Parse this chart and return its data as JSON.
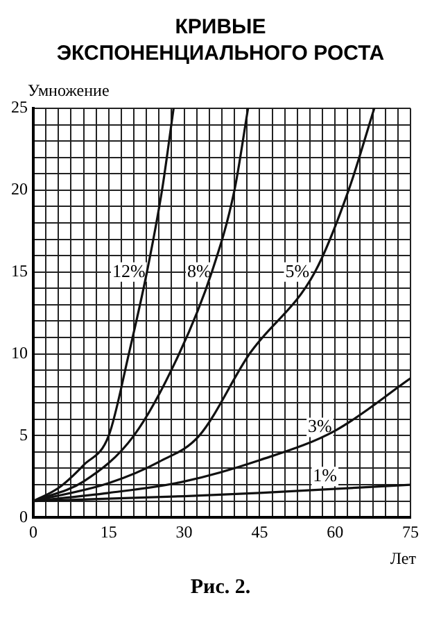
{
  "chart_data": {
    "type": "line",
    "title": "КРИВЫЕ\nЭКСПОНЕНЦИАЛЬНОГО РОСТА",
    "xlabel": "Лет",
    "ylabel": "Умножение",
    "xlim": [
      0,
      75
    ],
    "ylim": [
      0,
      25
    ],
    "grid": true,
    "xticks": [
      0,
      {
        "value": 2.5,
        "label": null
      },
      {
        "value": 5,
        "label": null
      },
      {
        "value": 7.5,
        "label": null
      },
      {
        "value": 10,
        "label": null
      },
      {
        "value": 12.5,
        "label": null
      },
      15,
      {
        "value": 17.5,
        "label": null
      },
      {
        "value": 20,
        "label": null
      },
      {
        "value": 22.5,
        "label": null
      },
      {
        "value": 25,
        "label": null
      },
      {
        "value": 27.5,
        "label": null
      },
      30,
      {
        "value": 32.5,
        "label": null
      },
      {
        "value": 35,
        "label": null
      },
      {
        "value": 37.5,
        "label": null
      },
      {
        "value": 40,
        "label": null
      },
      {
        "value": 42.5,
        "label": null
      },
      45,
      {
        "value": 47.5,
        "label": null
      },
      {
        "value": 50,
        "label": null
      },
      {
        "value": 52.5,
        "label": null
      },
      {
        "value": 55,
        "label": null
      },
      {
        "value": 57.5,
        "label": null
      },
      60,
      {
        "value": 62.5,
        "label": null
      },
      {
        "value": 65,
        "label": null
      },
      {
        "value": 67.5,
        "label": null
      },
      {
        "value": 70,
        "label": null
      },
      {
        "value": 72.5,
        "label": null
      },
      75
    ],
    "yticks": [
      0,
      {
        "value": 1,
        "label": null
      },
      {
        "value": 2,
        "label": null
      },
      {
        "value": 3,
        "label": null
      },
      {
        "value": 4,
        "label": null
      },
      5,
      {
        "value": 6,
        "label": null
      },
      {
        "value": 7,
        "label": null
      },
      {
        "value": 8,
        "label": null
      },
      {
        "value": 9,
        "label": null
      },
      10,
      {
        "value": 11,
        "label": null
      },
      {
        "value": 12,
        "label": null
      },
      {
        "value": 13,
        "label": null
      },
      {
        "value": 14,
        "label": null
      },
      15,
      {
        "value": 16,
        "label": null
      },
      {
        "value": 17,
        "label": null
      },
      {
        "value": 18,
        "label": null
      },
      {
        "value": 19,
        "label": null
      },
      20,
      {
        "value": 21,
        "label": null
      },
      {
        "value": 22,
        "label": null
      },
      {
        "value": 23,
        "label": null
      },
      {
        "value": 24,
        "label": null
      },
      25
    ],
    "series": [
      {
        "color": "#111111",
        "x": [
          0,
          5,
          10,
          15,
          19,
          22.6,
          25.6,
          27.9
        ],
        "values": [
          1,
          1.8,
          3.2,
          5,
          10,
          15,
          20,
          25
        ]
      },
      {
        "color": "#111111",
        "x": [
          0,
          10,
          20,
          29,
          35.5,
          40,
          42.7
        ],
        "values": [
          1,
          2.2,
          5,
          10,
          15,
          20,
          25
        ]
      },
      {
        "color": "#111111",
        "x": [
          0,
          15,
          25,
          33,
          43,
          56,
          62.7,
          67.8
        ],
        "values": [
          1,
          2.1,
          3.4,
          5,
          10,
          15,
          20,
          25
        ]
      },
      {
        "color": "#111111",
        "x": [
          0,
          15,
          30,
          45,
          60,
          75
        ],
        "values": [
          1,
          1.5,
          2.2,
          3.5,
          5.3,
          8.5
        ]
      },
      {
        "color": "#111111",
        "x": [
          0,
          30,
          45,
          75
        ],
        "values": [
          1,
          1.3,
          1.5,
          2
        ]
      }
    ],
    "annotations": [
      {
        "text": "12%",
        "x": 19,
        "y": 15
      },
      {
        "text": "8%",
        "x": 33,
        "y": 15
      },
      {
        "text": "5%",
        "x": 52.5,
        "y": 15
      },
      {
        "text": "3%",
        "x": 57,
        "y": 5.5
      },
      {
        "text": "1%",
        "x": 58,
        "y": 2.5
      },
      "Рис. 2."
    ]
  }
}
